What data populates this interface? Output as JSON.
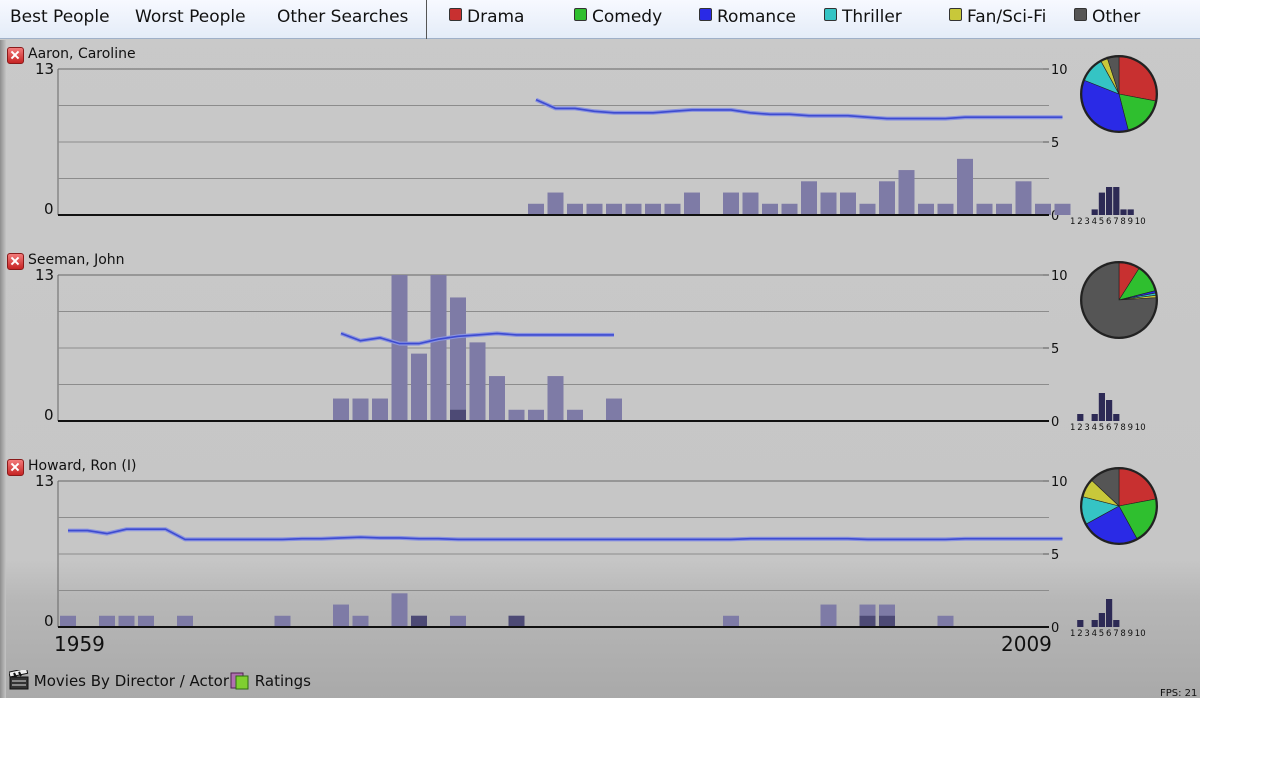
{
  "nav": {
    "items": [
      "Best People",
      "Worst People",
      "Other Searches"
    ]
  },
  "genres": [
    {
      "label": "Drama",
      "color": "#c83030"
    },
    {
      "label": "Comedy",
      "color": "#2fbf2f"
    },
    {
      "label": "Romance",
      "color": "#2a2ae6"
    },
    {
      "label": "Thriller",
      "color": "#35c4c4"
    },
    {
      "label": "Fan/Sci-Fi",
      "color": "#c8c83a"
    },
    {
      "label": "Other",
      "color": "#555555"
    }
  ],
  "panels": [
    {
      "name": "Aaron, Caroline",
      "count_axis": {
        "min": "0",
        "max": "13"
      },
      "rating_axis": [
        "10",
        "5",
        "0"
      ],
      "counts": [
        0,
        0,
        0,
        0,
        0,
        0,
        0,
        0,
        0,
        0,
        0,
        0,
        0,
        0,
        0,
        0,
        0,
        0,
        0,
        0,
        0,
        0,
        0,
        0,
        1,
        2,
        1,
        1,
        1,
        1,
        1,
        1,
        2,
        0,
        2,
        2,
        1,
        1,
        3,
        2,
        2,
        1,
        3,
        4,
        1,
        1,
        5,
        1,
        1,
        3,
        1,
        1
      ],
      "highlight": [],
      "rating_line": [
        null,
        null,
        null,
        null,
        null,
        null,
        null,
        null,
        null,
        null,
        null,
        null,
        null,
        null,
        null,
        null,
        null,
        null,
        null,
        null,
        null,
        null,
        null,
        null,
        7.9,
        7.3,
        7.3,
        7.1,
        7.0,
        7.0,
        7.0,
        7.1,
        7.2,
        7.2,
        7.2,
        7.0,
        6.9,
        6.9,
        6.8,
        6.8,
        6.8,
        6.7,
        6.6,
        6.6,
        6.6,
        6.6,
        6.7,
        6.7,
        6.7,
        6.7,
        6.7,
        6.7
      ],
      "pie": [
        {
          "genre": "Drama",
          "value": 28
        },
        {
          "genre": "Comedy",
          "value": 18
        },
        {
          "genre": "Romance",
          "value": 35
        },
        {
          "genre": "Thriller",
          "value": 11
        },
        {
          "genre": "Fan/Sci-Fi",
          "value": 3
        },
        {
          "genre": "Other",
          "value": 5
        }
      ],
      "rating_hist": [
        0,
        0,
        0,
        1,
        4,
        5,
        5,
        1,
        1,
        0
      ]
    },
    {
      "name": "Seeman, John",
      "count_axis": {
        "min": "0",
        "max": "13"
      },
      "rating_axis": [
        "10",
        "5",
        "0"
      ],
      "counts": [
        0,
        0,
        0,
        0,
        0,
        0,
        0,
        0,
        0,
        0,
        0,
        0,
        0,
        0,
        2,
        2,
        2,
        13,
        6,
        13,
        11,
        7,
        4,
        1,
        1,
        4,
        1,
        0,
        2,
        0,
        0,
        0,
        0,
        0,
        0,
        0,
        0,
        0,
        0,
        0,
        0,
        0,
        0,
        0,
        0,
        0,
        0,
        0,
        0,
        0,
        0,
        0
      ],
      "highlight": [
        0,
        0,
        0,
        0,
        0,
        0,
        0,
        0,
        0,
        0,
        0,
        0,
        0,
        0,
        0,
        0,
        0,
        0,
        0,
        0,
        1,
        0,
        0,
        0,
        0,
        0,
        0,
        0,
        0,
        0,
        0,
        0,
        0,
        0,
        0,
        0,
        0,
        0,
        0,
        0,
        0,
        0,
        0,
        0,
        0,
        0,
        0,
        0,
        0,
        0,
        0,
        0
      ],
      "rating_line": [
        null,
        null,
        null,
        null,
        null,
        null,
        null,
        null,
        null,
        null,
        null,
        null,
        null,
        null,
        6.0,
        5.5,
        5.7,
        5.3,
        5.3,
        5.6,
        5.8,
        5.9,
        6.0,
        5.9,
        5.9,
        5.9,
        5.9,
        5.9,
        5.9,
        null,
        null,
        null,
        null,
        null,
        null,
        null,
        null,
        null,
        null,
        null,
        null,
        null,
        null,
        null,
        null,
        null,
        null,
        null,
        null,
        null,
        null,
        null
      ],
      "pie": [
        {
          "genre": "Drama",
          "value": 9
        },
        {
          "genre": "Comedy",
          "value": 12
        },
        {
          "genre": "Romance",
          "value": 1
        },
        {
          "genre": "Thriller",
          "value": 1
        },
        {
          "genre": "Fan/Sci-Fi",
          "value": 1
        },
        {
          "genre": "Other",
          "value": 76
        }
      ],
      "rating_hist": [
        0,
        1,
        0,
        1,
        4,
        3,
        1,
        0,
        0,
        0
      ]
    },
    {
      "name": "Howard, Ron (I)",
      "count_axis": {
        "min": "0",
        "max": "13"
      },
      "rating_axis": [
        "10",
        "5",
        "0"
      ],
      "counts": [
        1,
        0,
        1,
        1,
        1,
        0,
        1,
        0,
        0,
        0,
        0,
        1,
        0,
        0,
        2,
        1,
        0,
        3,
        1,
        0,
        1,
        0,
        0,
        1,
        0,
        0,
        0,
        0,
        0,
        0,
        0,
        0,
        0,
        0,
        1,
        0,
        0,
        0,
        0,
        2,
        0,
        2,
        2,
        0,
        0,
        1,
        0,
        0,
        0,
        0,
        0,
        0
      ],
      "highlight": [
        0,
        0,
        0,
        0,
        0,
        0,
        0,
        0,
        0,
        0,
        0,
        0,
        0,
        0,
        0,
        0,
        0,
        0,
        1,
        0,
        0,
        0,
        0,
        1,
        0,
        0,
        0,
        0,
        0,
        0,
        0,
        0,
        0,
        0,
        0,
        0,
        0,
        0,
        0,
        0,
        0,
        1,
        1,
        0,
        0,
        0,
        0,
        0,
        0,
        0,
        0,
        0
      ],
      "rating_line": [
        6.6,
        6.6,
        6.4,
        6.7,
        6.7,
        6.7,
        6.0,
        6.0,
        6.0,
        6.0,
        6.0,
        6.0,
        6.05,
        6.05,
        6.1,
        6.15,
        6.1,
        6.1,
        6.05,
        6.05,
        6.0,
        6.0,
        6.0,
        6.0,
        6.0,
        6.0,
        6.0,
        6.0,
        6.0,
        6.0,
        6.0,
        6.0,
        6.0,
        6.0,
        6.0,
        6.05,
        6.05,
        6.05,
        6.05,
        6.05,
        6.05,
        6.0,
        6.0,
        6.0,
        6.0,
        6.0,
        6.05,
        6.05,
        6.05,
        6.05,
        6.05,
        6.05
      ],
      "pie": [
        {
          "genre": "Drama",
          "value": 22
        },
        {
          "genre": "Comedy",
          "value": 20
        },
        {
          "genre": "Romance",
          "value": 25
        },
        {
          "genre": "Thriller",
          "value": 12
        },
        {
          "genre": "Fan/Sci-Fi",
          "value": 8
        },
        {
          "genre": "Other",
          "value": 13
        }
      ],
      "rating_hist": [
        0,
        1,
        0,
        1,
        2,
        4,
        1,
        0,
        0,
        0
      ]
    }
  ],
  "hist_labels": [
    "1",
    "2",
    "3",
    "4",
    "5",
    "6",
    "7",
    "8",
    "9",
    "10"
  ],
  "timeline": {
    "start_year": "1959",
    "end_year": "2009"
  },
  "footer": {
    "movies_label": "Movies By Director / Actor",
    "ratings_label": "Ratings"
  },
  "fps": "FPS: 21"
}
